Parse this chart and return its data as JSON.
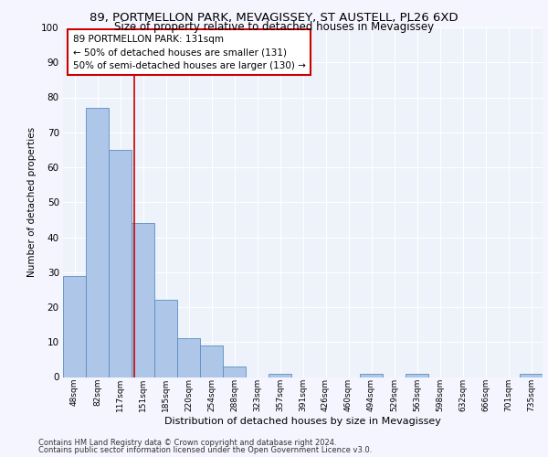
{
  "title1": "89, PORTMELLON PARK, MEVAGISSEY, ST AUSTELL, PL26 6XD",
  "title2": "Size of property relative to detached houses in Mevagissey",
  "xlabel": "Distribution of detached houses by size in Mevagissey",
  "ylabel": "Number of detached properties",
  "bin_labels": [
    "48sqm",
    "82sqm",
    "117sqm",
    "151sqm",
    "185sqm",
    "220sqm",
    "254sqm",
    "288sqm",
    "323sqm",
    "357sqm",
    "391sqm",
    "426sqm",
    "460sqm",
    "494sqm",
    "529sqm",
    "563sqm",
    "598sqm",
    "632sqm",
    "666sqm",
    "701sqm",
    "735sqm"
  ],
  "bar_heights": [
    29,
    77,
    65,
    44,
    22,
    11,
    9,
    3,
    0,
    1,
    0,
    0,
    0,
    1,
    0,
    1,
    0,
    0,
    0,
    0,
    1
  ],
  "bar_color": "#aec6e8",
  "bar_edge_color": "#5a8fc2",
  "background_color": "#eef2fa",
  "grid_color": "#ffffff",
  "red_line_x": 2.62,
  "annotation_text": "89 PORTMELLON PARK: 131sqm\n← 50% of detached houses are smaller (131)\n50% of semi-detached houses are larger (130) →",
  "annotation_box_color": "#ffffff",
  "annotation_box_edge": "#cc0000",
  "ylim": [
    0,
    100
  ],
  "yticks": [
    0,
    10,
    20,
    30,
    40,
    50,
    60,
    70,
    80,
    90,
    100
  ],
  "footer1": "Contains HM Land Registry data © Crown copyright and database right 2024.",
  "footer2": "Contains public sector information licensed under the Open Government Licence v3.0."
}
